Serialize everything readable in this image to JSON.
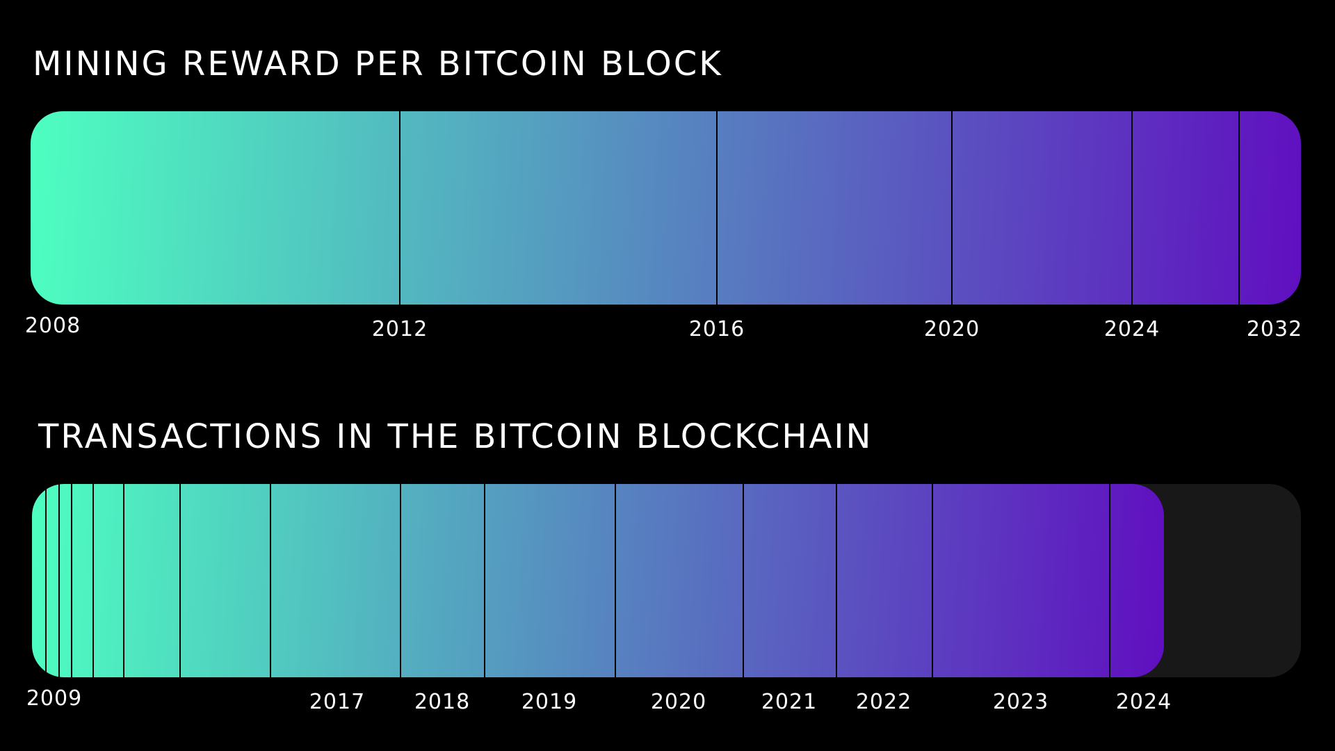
{
  "chart_data": [
    {
      "type": "bar",
      "title": "MINING REWARD PER BITCOIN BLOCK",
      "x": [
        2008,
        2012,
        2016,
        2020,
        2024,
        2032
      ],
      "tick_labels": [
        "2008",
        "2012",
        "2016",
        "2020",
        "2024",
        "2032"
      ],
      "gradient": [
        "#4dffc0",
        "#6010c0"
      ]
    },
    {
      "type": "bar",
      "title": "TRANSACTIONS IN THE BITCOIN BLOCKCHAIN",
      "x": [
        2009,
        2017,
        2018,
        2019,
        2020,
        2021,
        2022,
        2023,
        2024
      ],
      "tick_labels": [
        "2009",
        "2017",
        "2018",
        "2019",
        "2020",
        "2021",
        "2022",
        "2023",
        "2024"
      ],
      "gradient": [
        "#4dffc0",
        "#6010c0"
      ],
      "remaining_color": "#181818"
    }
  ]
}
